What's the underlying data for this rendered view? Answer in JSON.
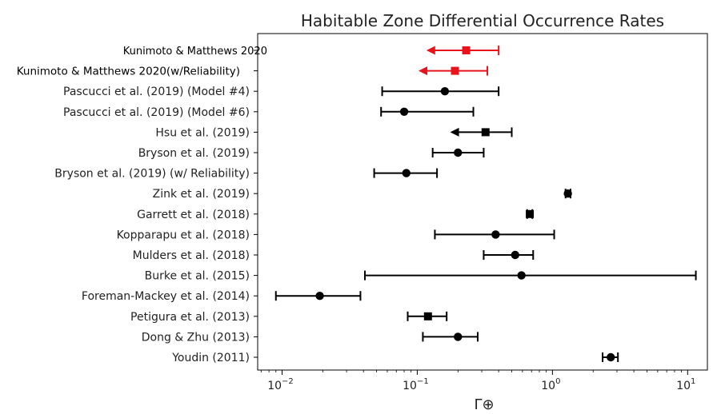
{
  "chart_data": {
    "type": "scatter",
    "subtype": "forest-plot",
    "title": "Habitable Zone Differential Occurrence Rates",
    "xlabel": "Γ⊕",
    "xscale": "log",
    "xlim": [
      0.0066,
      14
    ],
    "xticks": [
      {
        "value": 0.01,
        "base": "10",
        "exp": "−2"
      },
      {
        "value": 0.1,
        "base": "10",
        "exp": "−1"
      },
      {
        "value": 1,
        "base": "10",
        "exp": "0"
      },
      {
        "value": 10,
        "base": "10",
        "exp": "1"
      }
    ],
    "grid": false,
    "rows": [
      {
        "label": "Kunimoto & Matthews 2020",
        "value": 0.23,
        "low": 0.12,
        "high": 0.4,
        "marker": "square",
        "upper_limit": true,
        "color": "#e8141c"
      },
      {
        "label": "Kunimoto & Matthews 2020(w/Reliability)",
        "value": 0.19,
        "low": 0.105,
        "high": 0.33,
        "marker": "square",
        "upper_limit": true,
        "color": "#e8141c"
      },
      {
        "label": "Pascucci et al. (2019) (Model #4)",
        "value": 0.16,
        "low": 0.055,
        "high": 0.4,
        "marker": "circle",
        "upper_limit": false,
        "color": "#000000"
      },
      {
        "label": "Pascucci et al. (2019) (Model #6)",
        "value": 0.08,
        "low": 0.054,
        "high": 0.26,
        "marker": "circle",
        "upper_limit": false,
        "color": "#000000"
      },
      {
        "label": "Hsu et al. (2019)",
        "value": 0.32,
        "low": 0.18,
        "high": 0.5,
        "marker": "square",
        "upper_limit": true,
        "color": "#000000"
      },
      {
        "label": "Bryson et al. (2019)",
        "value": 0.2,
        "low": 0.13,
        "high": 0.31,
        "marker": "circle",
        "upper_limit": false,
        "color": "#000000"
      },
      {
        "label": "Bryson et al. (2019) (w/ Reliability)",
        "value": 0.083,
        "low": 0.048,
        "high": 0.14,
        "marker": "circle",
        "upper_limit": false,
        "color": "#000000"
      },
      {
        "label": "Zink et al. (2019)",
        "value": 1.3,
        "low": 1.25,
        "high": 1.36,
        "marker": "circle",
        "upper_limit": false,
        "color": "#000000"
      },
      {
        "label": "Garrett et al. (2018)",
        "value": 0.68,
        "low": 0.65,
        "high": 0.71,
        "marker": "square",
        "upper_limit": false,
        "color": "#000000"
      },
      {
        "label": "Kopparapu et al. (2018)",
        "value": 0.38,
        "low": 0.135,
        "high": 1.03,
        "marker": "circle",
        "upper_limit": false,
        "color": "#000000"
      },
      {
        "label": "Mulders et al. (2018)",
        "value": 0.53,
        "low": 0.31,
        "high": 0.72,
        "marker": "circle",
        "upper_limit": false,
        "color": "#000000"
      },
      {
        "label": "Burke et al. (2015)",
        "value": 0.59,
        "low": 0.041,
        "high": 11.5,
        "marker": "circle",
        "upper_limit": false,
        "color": "#000000"
      },
      {
        "label": "Foreman-Mackey et al. (2014)",
        "value": 0.019,
        "low": 0.009,
        "high": 0.038,
        "marker": "circle",
        "upper_limit": false,
        "color": "#000000"
      },
      {
        "label": "Petigura et al. (2013)",
        "value": 0.12,
        "low": 0.085,
        "high": 0.165,
        "marker": "square",
        "upper_limit": false,
        "color": "#000000"
      },
      {
        "label": "Dong & Zhu (2013)",
        "value": 0.2,
        "low": 0.11,
        "high": 0.28,
        "marker": "circle",
        "upper_limit": false,
        "color": "#000000"
      },
      {
        "label": "Youdin (2011)",
        "value": 2.7,
        "low": 2.35,
        "high": 3.05,
        "marker": "circle",
        "upper_limit": false,
        "color": "#000000"
      }
    ]
  }
}
